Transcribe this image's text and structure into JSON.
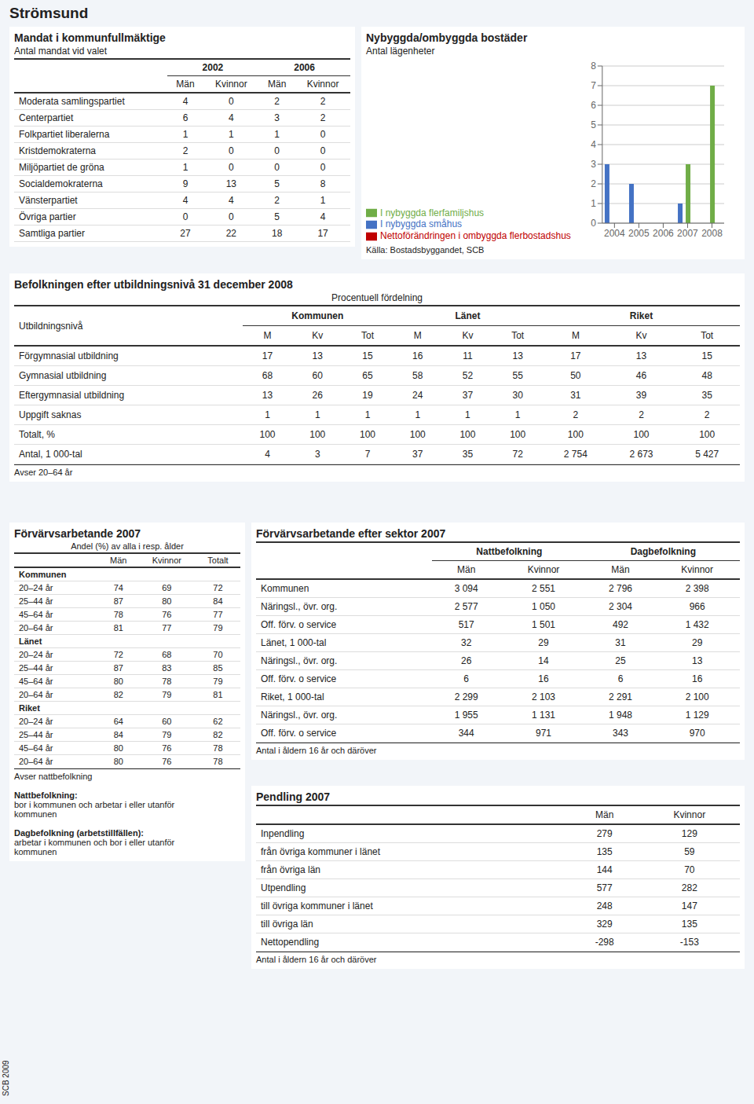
{
  "title": "Strömsund",
  "annotations": [
    "SCB 2009"
  ],
  "chart_data": [
    {
      "type": "table",
      "title": "Mandat i kommunfullmäktige",
      "subtitle": "Antal mandat vid valet",
      "categories": [
        "Moderata samlingspartiet",
        "Centerpartiet",
        "Folkpartiet liberalerna",
        "Kristdemokraterna",
        "Miljöpartiet de gröna",
        "Socialdemokraterna",
        "Vänsterpartiet",
        "Övriga partier",
        "Samtliga partier"
      ],
      "series": [
        {
          "name": "Män",
          "group": "2002",
          "values": [
            4,
            6,
            1,
            2,
            1,
            9,
            4,
            0,
            27
          ]
        },
        {
          "name": "Kvinnor",
          "group": "2002",
          "values": [
            0,
            4,
            1,
            0,
            0,
            13,
            4,
            0,
            22
          ]
        },
        {
          "name": "Män",
          "group": "2006",
          "values": [
            2,
            3,
            1,
            0,
            0,
            5,
            2,
            5,
            18
          ]
        },
        {
          "name": "Kvinnor",
          "group": "2006",
          "values": [
            2,
            2,
            0,
            0,
            0,
            8,
            1,
            4,
            17
          ]
        }
      ]
    },
    {
      "type": "bar",
      "title": "Nybyggda/ombyggda bostäder",
      "ylabel": "Antal lägenheter",
      "categories": [
        "2004",
        "2005",
        "2006",
        "2007",
        "2008"
      ],
      "series": [
        {
          "name": "I nybyggda småhus",
          "color": "#4472c4",
          "values": [
            3,
            2,
            0,
            1,
            0
          ]
        },
        {
          "name": "I nybyggda flerfamiljshus",
          "color": "#70ad47",
          "values": [
            0,
            0,
            0,
            3,
            7
          ]
        },
        {
          "name": "Nettoförändringen i ombyggda flerbostadshus",
          "color": "#c00000",
          "values": [
            0,
            0,
            0,
            0,
            0
          ]
        }
      ],
      "ylim": [
        0,
        8
      ],
      "yticks": [
        0,
        1,
        2,
        3,
        4,
        5,
        6,
        7,
        8
      ],
      "grid": true,
      "legend": "bottom",
      "annotations": [
        "Källa: Bostadsbyggandet, SCB"
      ]
    },
    {
      "type": "table",
      "title": "Befolkningen efter utbildningsnivå 31 december 2008",
      "xlabel": "Utbildningsnivå",
      "annotations": [
        "Procentuell fördelning"
      ],
      "categories": [
        "Förgymnasial utbildning",
        "Gymnasial utbildning",
        "Eftergymnasial utbildning",
        "Uppgift saknas",
        "Totalt, %",
        "Antal, 1 000-tal"
      ],
      "series": [
        {
          "name": "M",
          "group": "Kommunen",
          "values": [
            17,
            68,
            13,
            1,
            100,
            4
          ]
        },
        {
          "name": "Kv",
          "group": "Kommunen",
          "values": [
            13,
            60,
            26,
            1,
            100,
            3
          ]
        },
        {
          "name": "Tot",
          "group": "Kommunen",
          "values": [
            15,
            65,
            19,
            1,
            100,
            7
          ]
        },
        {
          "name": "M",
          "group": "Länet",
          "values": [
            16,
            58,
            24,
            1,
            100,
            37
          ]
        },
        {
          "name": "Kv",
          "group": "Länet",
          "values": [
            11,
            52,
            37,
            1,
            100,
            35
          ]
        },
        {
          "name": "Tot",
          "group": "Länet",
          "values": [
            13,
            55,
            30,
            1,
            100,
            72
          ]
        },
        {
          "name": "M",
          "group": "Riket",
          "values": [
            17,
            50,
            31,
            2,
            100,
            2754
          ],
          "value_labels": [
            "17",
            "50",
            "31",
            "2",
            "100",
            "2 754"
          ]
        },
        {
          "name": "Kv",
          "group": "Riket",
          "values": [
            13,
            46,
            39,
            2,
            100,
            2673
          ],
          "value_labels": [
            "13",
            "46",
            "39",
            "2",
            "100",
            "2 673"
          ]
        },
        {
          "name": "Tot",
          "group": "Riket",
          "values": [
            15,
            48,
            35,
            2,
            100,
            5427
          ],
          "value_labels": [
            "15",
            "48",
            "35",
            "2",
            "100",
            "5 427"
          ]
        }
      ],
      "note": "Avser 20–64 år"
    },
    {
      "type": "table",
      "title": "Förvärvsarbetande 2007",
      "annotations": [
        "Andel (%) av alla i resp. ålder"
      ],
      "categories": [
        "Kommunen",
        "20–24 år",
        "25–44 år",
        "45–64 år",
        "20–64 år",
        "Länet",
        "20–24 år",
        "25–44 år",
        "45–64 år",
        "20–64 år",
        "Riket",
        "20–24 år",
        "25–44 år",
        "45–64 år",
        "20–64 år"
      ],
      "series": [
        {
          "name": "Män",
          "values": [
            null,
            74,
            87,
            78,
            81,
            null,
            72,
            87,
            80,
            82,
            null,
            64,
            84,
            80,
            80
          ]
        },
        {
          "name": "Kvinnor",
          "values": [
            null,
            69,
            80,
            76,
            77,
            null,
            68,
            83,
            78,
            79,
            null,
            60,
            79,
            76,
            76
          ]
        },
        {
          "name": "Totalt",
          "values": [
            null,
            72,
            84,
            77,
            79,
            null,
            70,
            85,
            79,
            81,
            null,
            62,
            82,
            78,
            78
          ]
        }
      ],
      "note": "Avser nattbefolkning",
      "footnotes": [
        {
          "title": "Nattbefolkning:",
          "text": "bor i kommunen och arbetar i eller utanför\nkommunen"
        },
        {
          "title": "Dagbefolkning (arbetstillfällen):",
          "text": "arbetar i kommunen och bor i eller utanför\nkommunen"
        }
      ]
    },
    {
      "type": "table",
      "title": "Förvärvsarbetande efter sektor 2007",
      "categories": [
        "Kommunen",
        "Näringsl., övr. org.",
        "Off. förv. o service",
        "Länet, 1 000-tal",
        "Näringsl., övr. org.",
        "Off. förv. o service",
        "Riket, 1 000-tal",
        "Näringsl., övr. org.",
        "Off. förv. o service"
      ],
      "series": [
        {
          "name": "Män",
          "group": "Nattbefolkning",
          "values": [
            3094,
            2577,
            517,
            32,
            26,
            6,
            2299,
            1955,
            344
          ],
          "value_labels": [
            "3 094",
            "2 577",
            "517",
            "32",
            "26",
            "6",
            "2 299",
            "1 955",
            "344"
          ]
        },
        {
          "name": "Kvinnor",
          "group": "Nattbefolkning",
          "values": [
            2551,
            1050,
            1501,
            29,
            14,
            16,
            2103,
            1131,
            971
          ],
          "value_labels": [
            "2 551",
            "1 050",
            "1 501",
            "29",
            "14",
            "16",
            "2 103",
            "1 131",
            "971"
          ]
        },
        {
          "name": "Män",
          "group": "Dagbefolkning",
          "values": [
            2796,
            2304,
            492,
            31,
            25,
            6,
            2291,
            1948,
            343
          ],
          "value_labels": [
            "2 796",
            "2 304",
            "492",
            "31",
            "25",
            "6",
            "2 291",
            "1 948",
            "343"
          ]
        },
        {
          "name": "Kvinnor",
          "group": "Dagbefolkning",
          "values": [
            2398,
            966,
            1432,
            29,
            13,
            16,
            2100,
            1129,
            970
          ],
          "value_labels": [
            "2 398",
            "966",
            "1 432",
            "29",
            "13",
            "16",
            "2 100",
            "1 129",
            "970"
          ]
        }
      ],
      "note": "Antal i åldern 16 år och däröver"
    },
    {
      "type": "table",
      "title": "Pendling 2007",
      "categories": [
        "Inpendling",
        "från övriga kommuner i länet",
        "från övriga län",
        "Utpendling",
        "till övriga kommuner i länet",
        "till övriga län",
        "Nettopendling"
      ],
      "series": [
        {
          "name": "Män",
          "values": [
            279,
            135,
            144,
            577,
            248,
            329,
            -298
          ]
        },
        {
          "name": "Kvinnor",
          "values": [
            129,
            59,
            70,
            282,
            147,
            135,
            -153
          ]
        }
      ],
      "note": "Antal i åldern 16 år och däröver"
    }
  ]
}
